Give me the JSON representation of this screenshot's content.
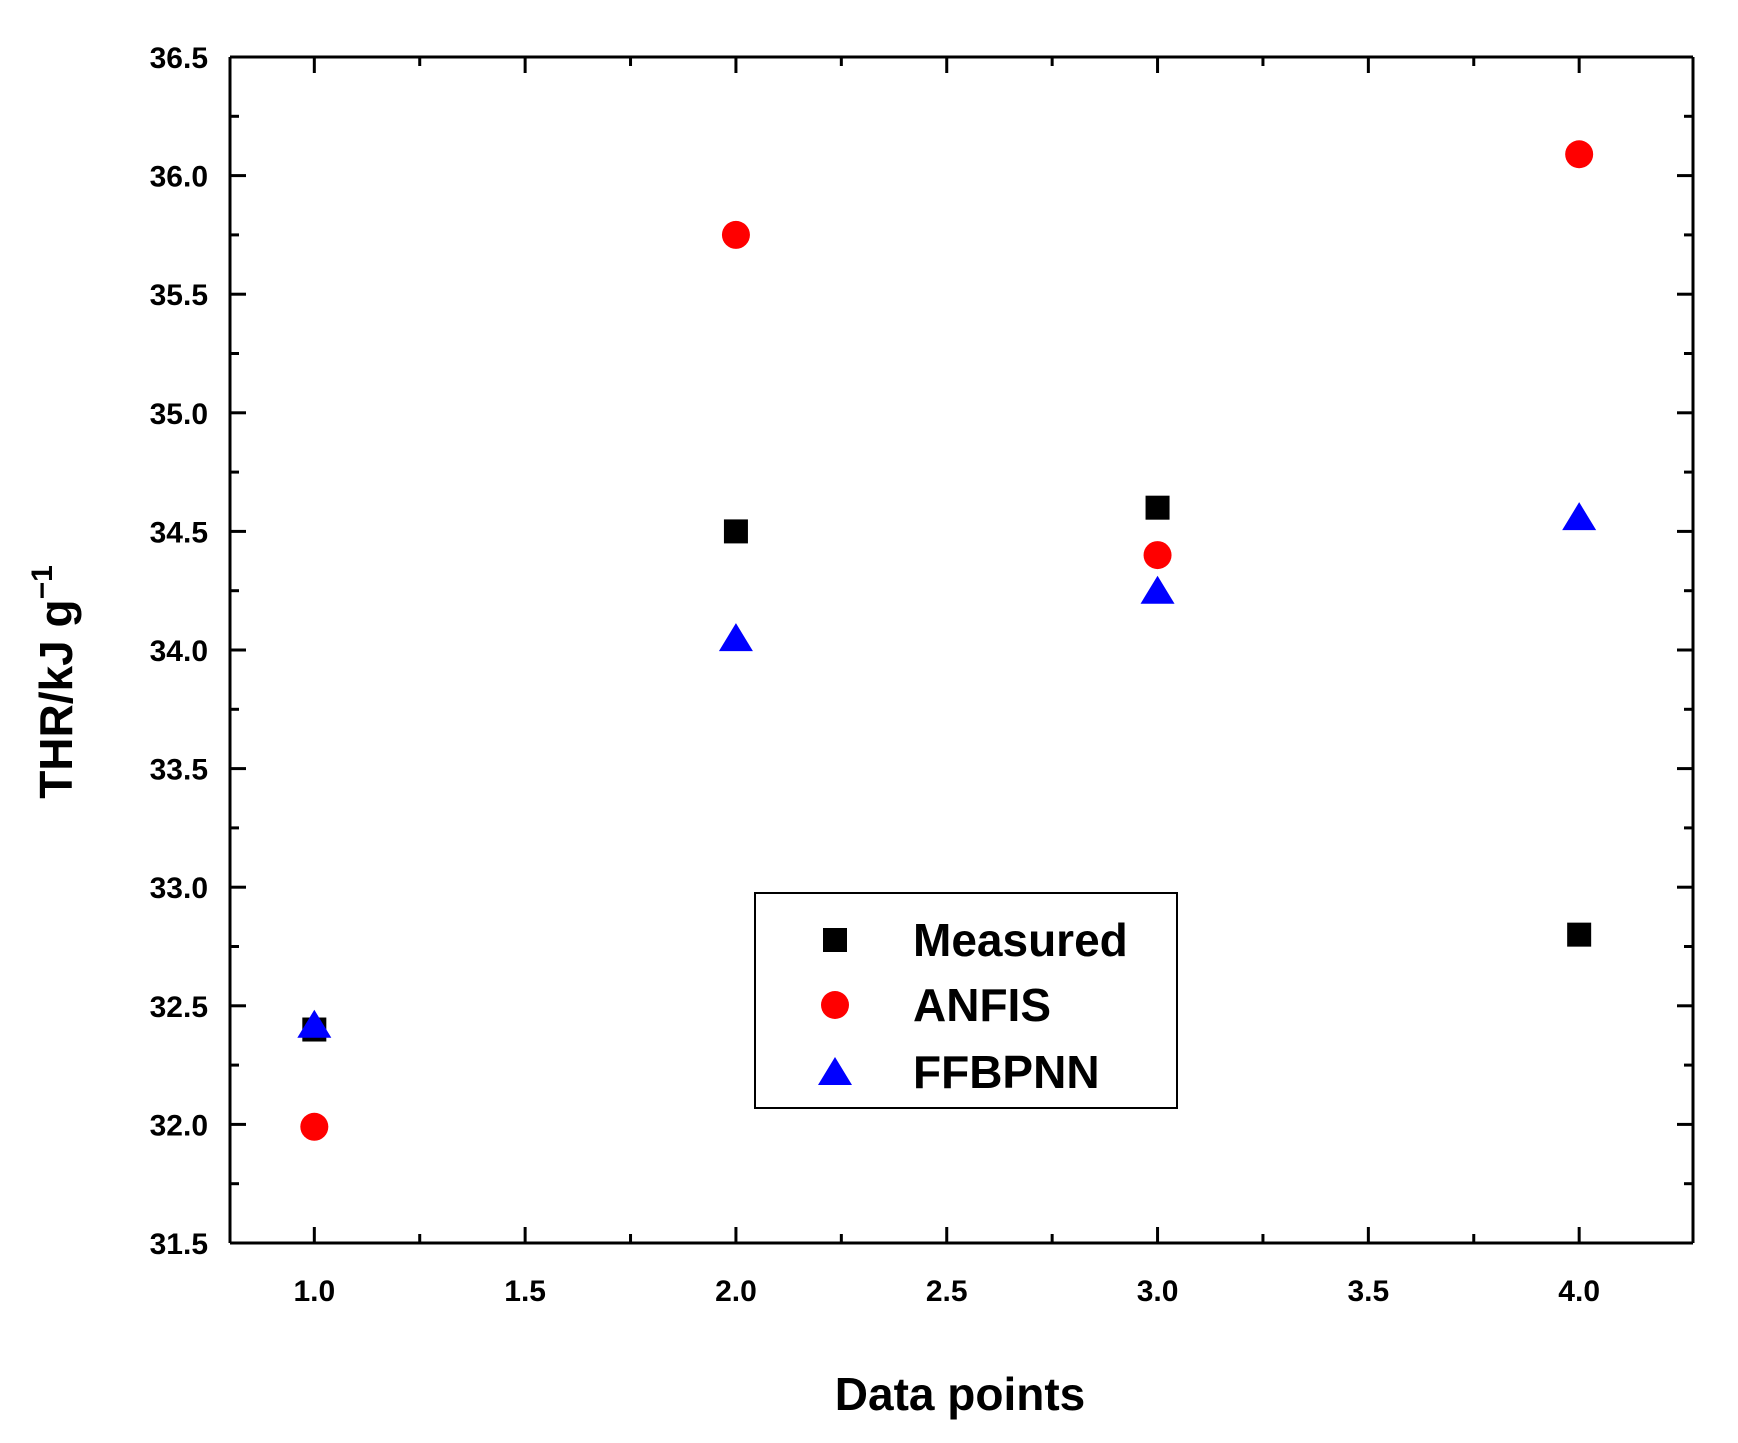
{
  "chart_data": {
    "type": "scatter",
    "xlabel": "Data points",
    "ylabel": "THR/kJ g",
    "ylabel_superscript": "−1",
    "xlim": [
      0.8,
      4.27
    ],
    "ylim": [
      31.5,
      36.5
    ],
    "x_ticks": [
      "1.0",
      "1.5",
      "2.0",
      "2.5",
      "3.0",
      "3.5",
      "4.0"
    ],
    "y_ticks": [
      "31.5",
      "32.0",
      "32.5",
      "33.0",
      "33.5",
      "34.0",
      "34.5",
      "35.0",
      "35.5",
      "36.0",
      "36.5"
    ],
    "legend_position": "center",
    "series": [
      {
        "name": "Measured",
        "marker": "square",
        "color": "#000000",
        "points": [
          {
            "x": 1,
            "y": 32.4
          },
          {
            "x": 2,
            "y": 34.5
          },
          {
            "x": 3,
            "y": 34.6
          },
          {
            "x": 4,
            "y": 32.8
          }
        ]
      },
      {
        "name": "ANFIS",
        "marker": "circle",
        "color": "#ff0000",
        "points": [
          {
            "x": 1,
            "y": 31.99
          },
          {
            "x": 2,
            "y": 35.75
          },
          {
            "x": 3,
            "y": 34.4
          },
          {
            "x": 4,
            "y": 36.09
          }
        ]
      },
      {
        "name": "FFBPNN",
        "marker": "triangle",
        "color": "#0000ff",
        "points": [
          {
            "x": 1,
            "y": 32.42
          },
          {
            "x": 2,
            "y": 34.05
          },
          {
            "x": 3,
            "y": 34.25
          },
          {
            "x": 4,
            "y": 34.56
          }
        ]
      }
    ]
  }
}
